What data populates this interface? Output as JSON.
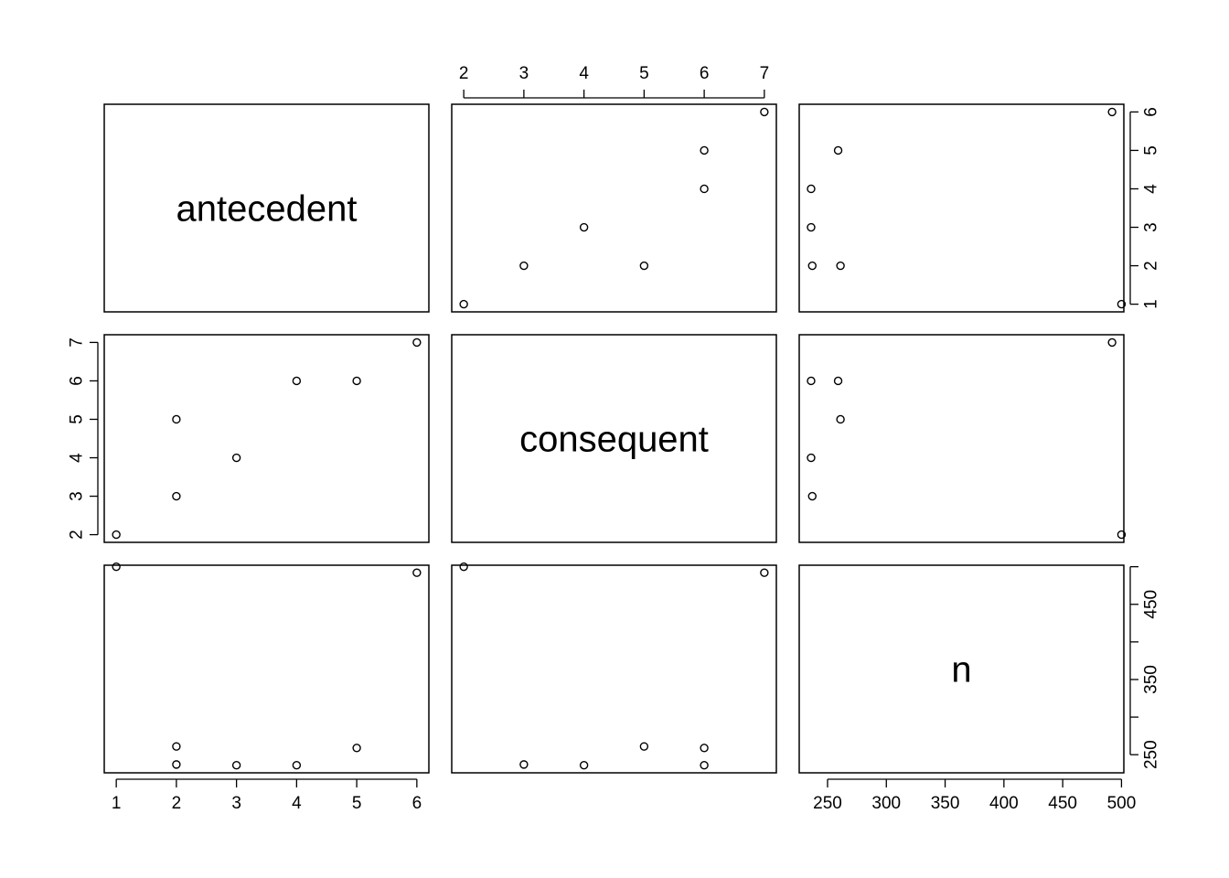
{
  "chart_data": {
    "type": "scatter",
    "kind": "scatterplot-matrix",
    "variables": [
      "antecedent",
      "consequent",
      "n"
    ],
    "observations": [
      {
        "antecedent": 1,
        "consequent": 2,
        "n": 500
      },
      {
        "antecedent": 2,
        "consequent": 3,
        "n": 237
      },
      {
        "antecedent": 2,
        "consequent": 5,
        "n": 261
      },
      {
        "antecedent": 3,
        "consequent": 4,
        "n": 236
      },
      {
        "antecedent": 4,
        "consequent": 6,
        "n": 236
      },
      {
        "antecedent": 5,
        "consequent": 6,
        "n": 259
      },
      {
        "antecedent": 6,
        "consequent": 7,
        "n": 492
      }
    ],
    "ranges": {
      "antecedent": [
        0.8,
        6.2
      ],
      "consequent": [
        1.8,
        7.2
      ],
      "n": [
        225.9,
        502
      ]
    },
    "ticks": {
      "antecedent": [
        1,
        2,
        3,
        4,
        5,
        6
      ],
      "consequent": [
        2,
        3,
        4,
        5,
        6,
        7
      ],
      "n_bottom": [
        250,
        300,
        350,
        400,
        450,
        500
      ],
      "n_right": [
        250,
        350,
        450
      ]
    },
    "grid": false,
    "legend": "none"
  }
}
